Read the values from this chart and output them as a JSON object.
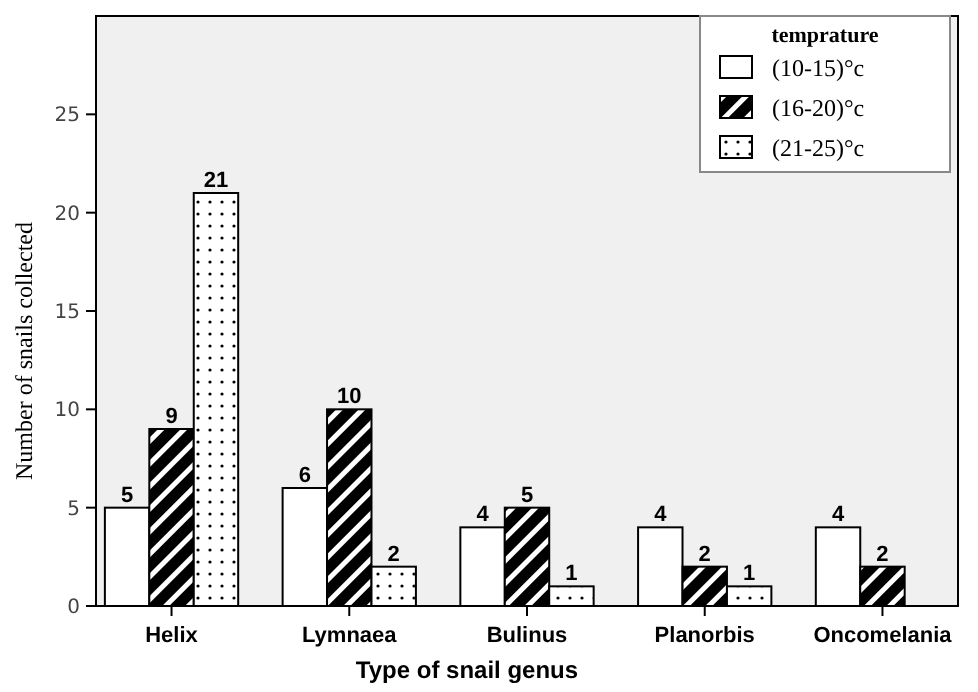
{
  "chart_data": {
    "type": "bar",
    "xlabel": "Type of snail genus",
    "ylabel": "Number of snails collected",
    "legend_title": "temprature",
    "categories": [
      "Helix",
      "Lymnaea",
      "Bulinus",
      "Planorbis",
      "Oncomelania"
    ],
    "series": [
      {
        "name": "(10-15)°c",
        "color": "#ffffff",
        "values": [
          5,
          6,
          4,
          4,
          4
        ]
      },
      {
        "name": "(16-20)°c",
        "color": "#000000",
        "values": [
          9,
          10,
          5,
          2,
          2
        ]
      },
      {
        "name": "(21-25)°c",
        "color": "#ffffff",
        "values": [
          21,
          2,
          1,
          1,
          null
        ]
      }
    ],
    "ylim": [
      0,
      30
    ],
    "yticks": [
      0,
      5,
      10,
      15,
      20,
      25
    ],
    "grid": false,
    "legend": "top right",
    "data_labels": true
  }
}
